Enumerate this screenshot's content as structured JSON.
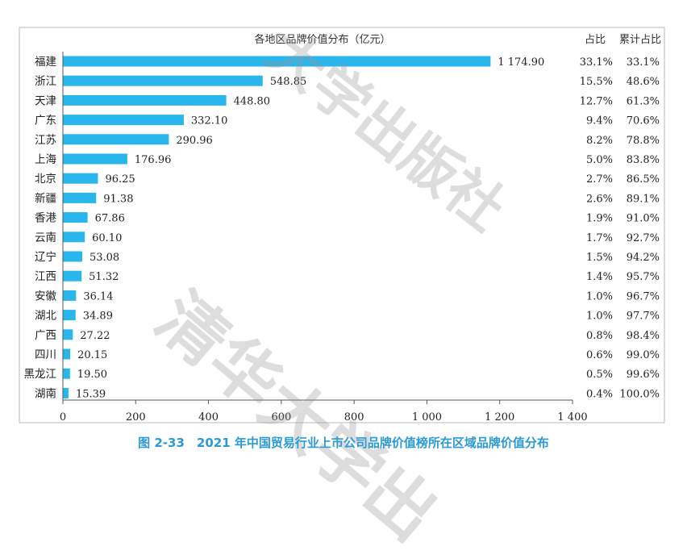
{
  "chart_data": {
    "type": "bar",
    "orientation": "horizontal",
    "title": "各地区品牌价值分布（亿元）",
    "categories": [
      "福建",
      "浙江",
      "天津",
      "广东",
      "江苏",
      "上海",
      "北京",
      "新疆",
      "香港",
      "云南",
      "辽宁",
      "江西",
      "安徽",
      "湖北",
      "广西",
      "四川",
      "黑龙江",
      "湖南"
    ],
    "values": [
      1174.9,
      548.85,
      448.8,
      332.1,
      290.96,
      176.96,
      96.25,
      91.38,
      67.86,
      60.1,
      53.08,
      51.32,
      36.14,
      34.89,
      27.22,
      20.15,
      19.5,
      15.39
    ],
    "value_labels": [
      "1 174.90",
      "548.85",
      "448.80",
      "332.10",
      "290.96",
      "176.96",
      "96.25",
      "91.38",
      "67.86",
      "60.10",
      "53.08",
      "51.32",
      "36.14",
      "34.89",
      "27.22",
      "20.15",
      "19.50",
      "15.39"
    ],
    "xlim": [
      0,
      1400
    ],
    "x_ticks": [
      0,
      200,
      400,
      600,
      800,
      1000,
      1200,
      1400
    ],
    "x_tick_labels": [
      "0",
      "200",
      "400",
      "600",
      "800",
      "1 000",
      "1 200",
      "1 400"
    ],
    "share_header": "占比",
    "cumulative_header": "累计占比",
    "share": [
      "33.1%",
      "15.5%",
      "12.7%",
      "9.4%",
      "8.2%",
      "5.0%",
      "2.7%",
      "2.6%",
      "1.9%",
      "1.7%",
      "1.5%",
      "1.4%",
      "1.0%",
      "1.0%",
      "0.8%",
      "0.6%",
      "0.5%",
      "0.4%"
    ],
    "cumulative": [
      "33.1%",
      "48.6%",
      "61.3%",
      "70.6%",
      "78.8%",
      "83.8%",
      "86.5%",
      "89.1%",
      "91.0%",
      "92.7%",
      "94.2%",
      "95.7%",
      "96.7%",
      "97.7%",
      "98.4%",
      "99.0%",
      "99.6%",
      "100.0%"
    ],
    "bar_color": "#29b6ec",
    "grid": false
  },
  "caption": "图 2-33　2021 年中国贸易行业上市公司品牌价值榜所在区域品牌价值分布",
  "watermark": {
    "text1": "大学出版社",
    "text2": "清华大学出"
  },
  "colors": {
    "caption": "#2a9ad6",
    "bar": "#29b6ec",
    "axis": "#555555"
  }
}
